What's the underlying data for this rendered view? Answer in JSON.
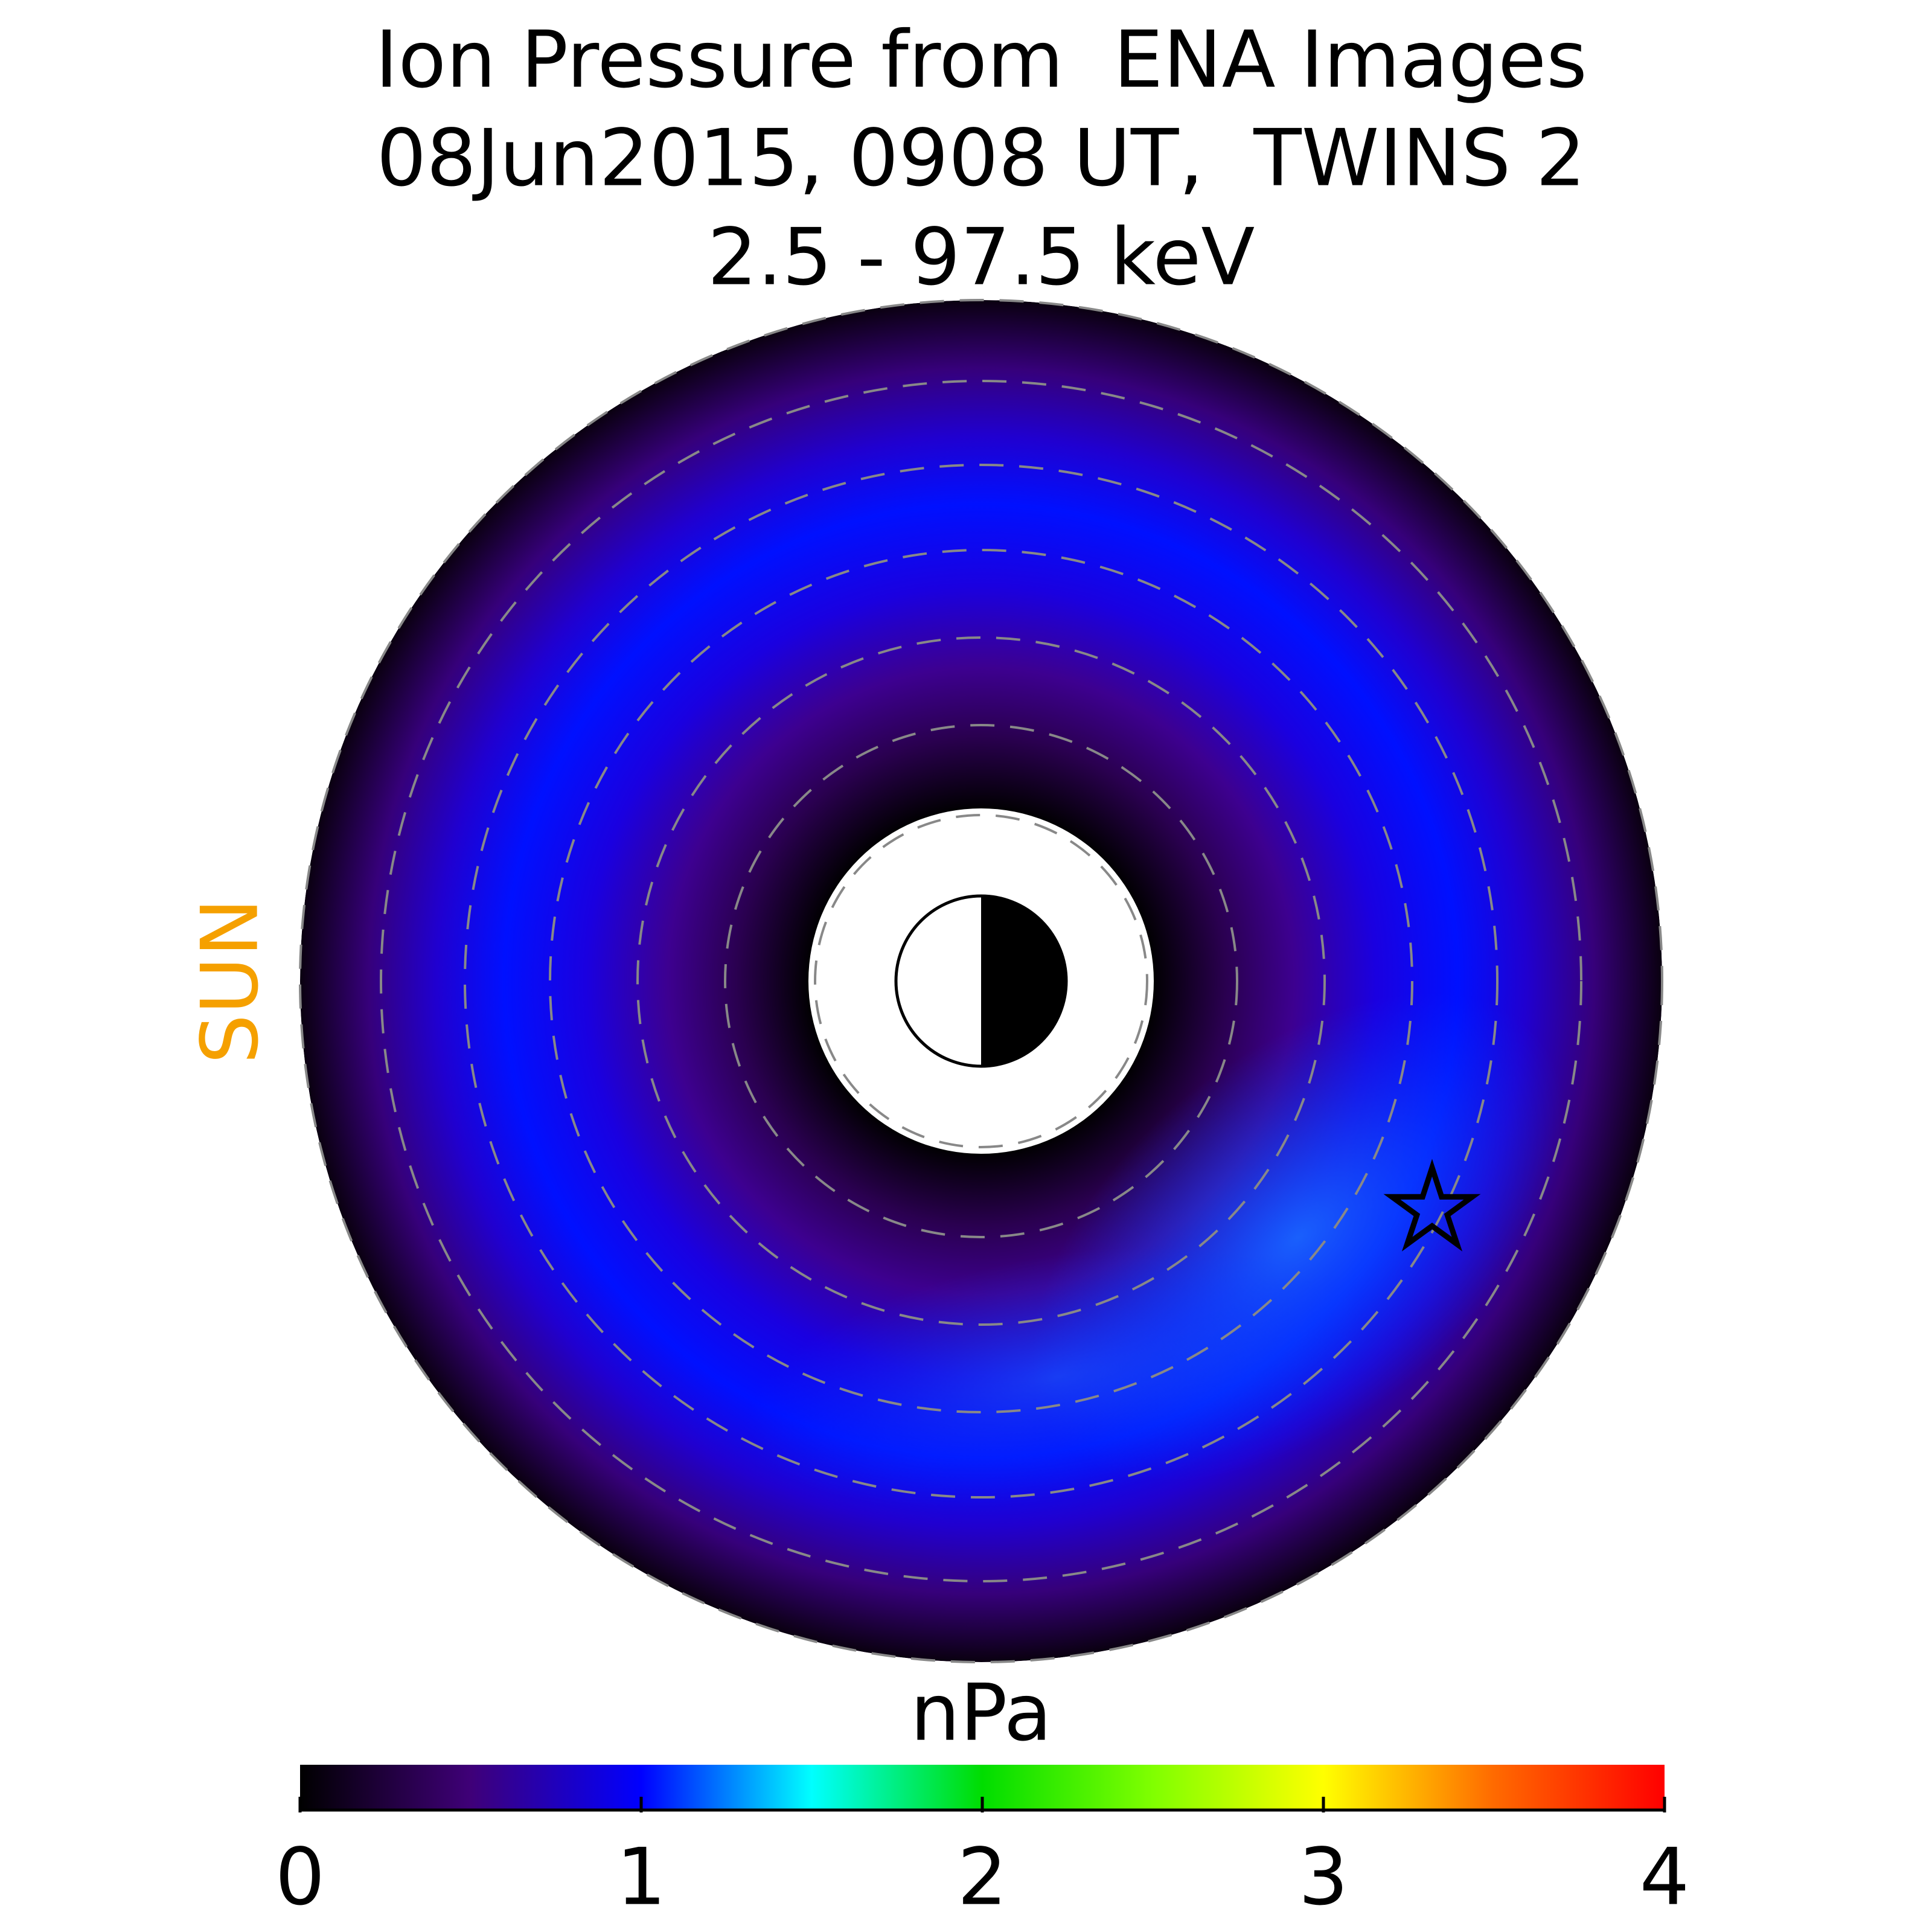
{
  "chart_data": {
    "type": "polar-map",
    "title": [
      "Ion Pressure from  ENA Images",
      "08Jun2015, 0908 UT,  TWINS 2",
      "2.5 - 97.5 keV"
    ],
    "sun_label": "SUN",
    "colorbar": {
      "label": "nPa",
      "lim": [
        0,
        4
      ],
      "ticks": [
        0,
        1,
        2,
        3,
        4
      ],
      "colormap": [
        "#000000",
        "#3f0078",
        "#0000ff",
        "#00ffff",
        "#00dd00",
        "#80ff00",
        "#ffff00",
        "#ff6a00",
        "#ff0000"
      ]
    }
  }
}
